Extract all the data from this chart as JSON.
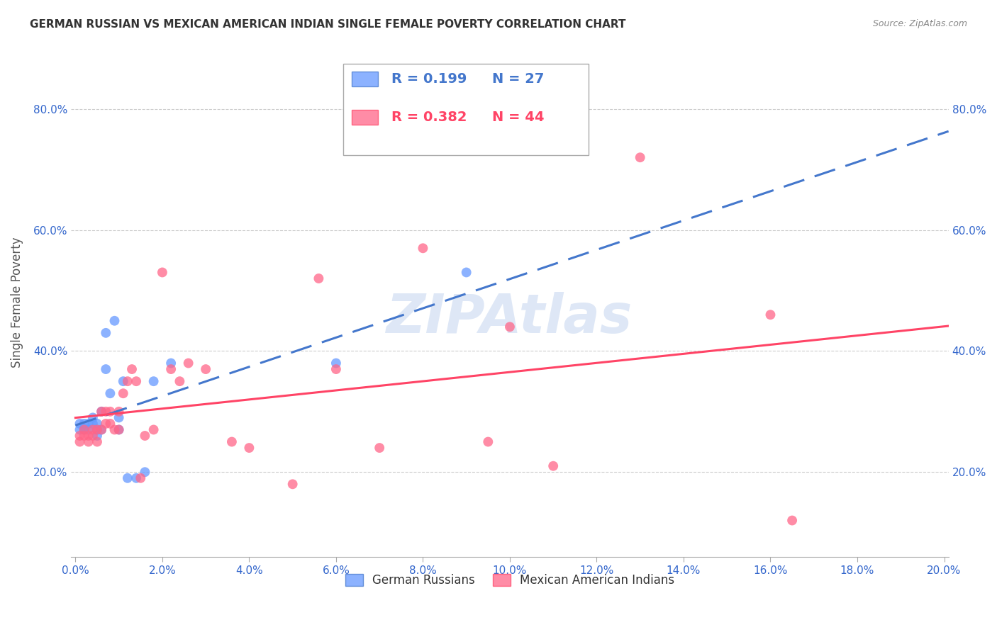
{
  "title": "GERMAN RUSSIAN VS MEXICAN AMERICAN INDIAN SINGLE FEMALE POVERTY CORRELATION CHART",
  "source": "Source: ZipAtlas.com",
  "ylabel": "Single Female Poverty",
  "axis_label_color": "#3366cc",
  "tick_label_color": "#3366cc",
  "background_color": "#ffffff",
  "plot_background": "#ffffff",
  "grid_color": "#cccccc",
  "watermark": "ZIPAtlas",
  "legend_R1": "0.199",
  "legend_N1": "27",
  "legend_R2": "0.382",
  "legend_N2": "44",
  "legend_label1": "German Russians",
  "legend_label2": "Mexican American Indians",
  "color1": "#6699ff",
  "color2": "#ff6688",
  "line_color1": "#4477cc",
  "line_color2": "#ff4466",
  "xmin": -0.001,
  "xmax": 0.201,
  "ymin": 0.06,
  "ymax": 0.9,
  "xticks": [
    0.0,
    0.02,
    0.04,
    0.06,
    0.08,
    0.1,
    0.12,
    0.14,
    0.16,
    0.18,
    0.2
  ],
  "yticks": [
    0.2,
    0.4,
    0.6,
    0.8
  ],
  "blue_x": [
    0.001,
    0.001,
    0.002,
    0.002,
    0.003,
    0.003,
    0.004,
    0.004,
    0.005,
    0.005,
    0.005,
    0.006,
    0.006,
    0.007,
    0.007,
    0.008,
    0.009,
    0.01,
    0.01,
    0.011,
    0.012,
    0.014,
    0.016,
    0.018,
    0.022,
    0.06,
    0.09
  ],
  "blue_y": [
    0.27,
    0.28,
    0.27,
    0.28,
    0.27,
    0.28,
    0.28,
    0.29,
    0.26,
    0.27,
    0.28,
    0.27,
    0.3,
    0.37,
    0.43,
    0.33,
    0.45,
    0.27,
    0.29,
    0.35,
    0.19,
    0.19,
    0.2,
    0.35,
    0.38,
    0.38,
    0.53
  ],
  "pink_x": [
    0.001,
    0.001,
    0.002,
    0.002,
    0.003,
    0.003,
    0.004,
    0.004,
    0.005,
    0.005,
    0.006,
    0.006,
    0.007,
    0.007,
    0.008,
    0.008,
    0.009,
    0.01,
    0.01,
    0.011,
    0.012,
    0.013,
    0.014,
    0.015,
    0.016,
    0.018,
    0.02,
    0.022,
    0.024,
    0.026,
    0.03,
    0.036,
    0.04,
    0.05,
    0.056,
    0.06,
    0.07,
    0.08,
    0.095,
    0.1,
    0.11,
    0.13,
    0.16,
    0.165
  ],
  "pink_y": [
    0.26,
    0.25,
    0.27,
    0.26,
    0.26,
    0.25,
    0.27,
    0.26,
    0.25,
    0.27,
    0.3,
    0.27,
    0.28,
    0.3,
    0.3,
    0.28,
    0.27,
    0.3,
    0.27,
    0.33,
    0.35,
    0.37,
    0.35,
    0.19,
    0.26,
    0.27,
    0.53,
    0.37,
    0.35,
    0.38,
    0.37,
    0.25,
    0.24,
    0.18,
    0.52,
    0.37,
    0.24,
    0.57,
    0.25,
    0.44,
    0.21,
    0.72,
    0.46,
    0.12
  ]
}
